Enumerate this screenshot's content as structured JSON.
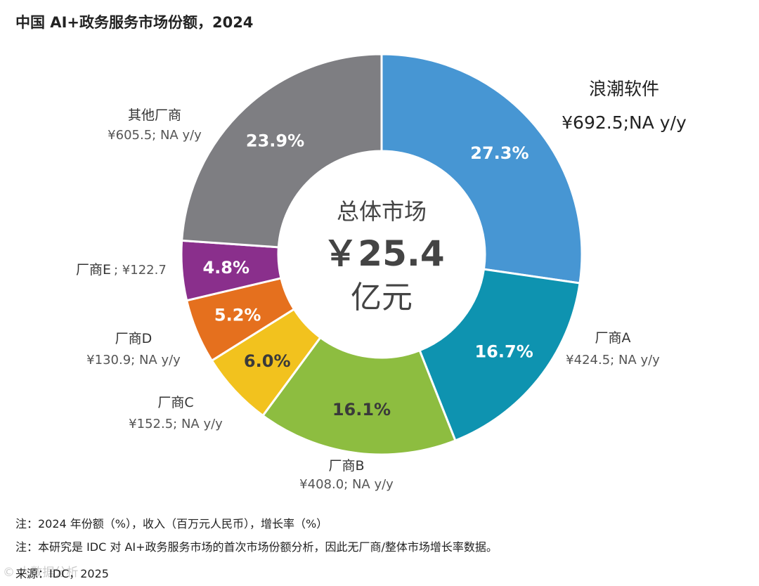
{
  "title": "中国 AI+政务服务市场份额，2024",
  "chart_data": {
    "type": "pie",
    "variant": "donut",
    "title": "中国 AI+政务服务市场份额，2024",
    "center": {
      "line1": "总体市场",
      "line2": "￥25.4",
      "line3": "亿元"
    },
    "segments": [
      {
        "name": "浪潮软件",
        "share": 27.3,
        "pct_label": "27.3%",
        "value_label": "¥692.5;NA y/y",
        "value": 692.5,
        "color": "#4796d3",
        "text_color": "#ffffff"
      },
      {
        "name": "厂商A",
        "share": 16.7,
        "pct_label": "16.7%",
        "value_label": "¥424.5; NA y/y",
        "value": 424.5,
        "color": "#0e93b0",
        "text_color": "#ffffff"
      },
      {
        "name": "厂商B",
        "share": 16.1,
        "pct_label": "16.1%",
        "value_label": "¥408.0; NA y/y",
        "value": 408.0,
        "color": "#8dbd40",
        "text_color": "#3a3a3a"
      },
      {
        "name": "厂商C",
        "share": 6.0,
        "pct_label": "6.0%",
        "value_label": "¥152.5; NA y/y",
        "value": 152.5,
        "color": "#f2c21e",
        "text_color": "#3a3a3a"
      },
      {
        "name": "厂商D",
        "share": 5.2,
        "pct_label": "5.2%",
        "value_label": "¥130.9; NA y/y",
        "value": 130.9,
        "color": "#e5701e",
        "text_color": "#ffffff"
      },
      {
        "name": "厂商E",
        "share": 4.8,
        "pct_label": "4.8%",
        "value_label": "; ¥122.7",
        "value": 122.7,
        "color": "#8a2f8c",
        "text_color": "#ffffff"
      },
      {
        "name": "其他厂商",
        "share": 23.9,
        "pct_label": "23.9%",
        "value_label": "¥605.5; NA y/y",
        "value": 605.5,
        "color": "#7e7e82",
        "text_color": "#ffffff"
      }
    ]
  },
  "notes": {
    "note1": "注：2024 年份额（%），收入（百万元人民币），增长率（%）",
    "note2": "注：本研究是 IDC 对 AI+政务服务市场的首次市场份额分析，因此无厂商/整体市场增长率数据。",
    "source": "来源：IDC，2025",
    "watermark": "© 大数据分析"
  }
}
